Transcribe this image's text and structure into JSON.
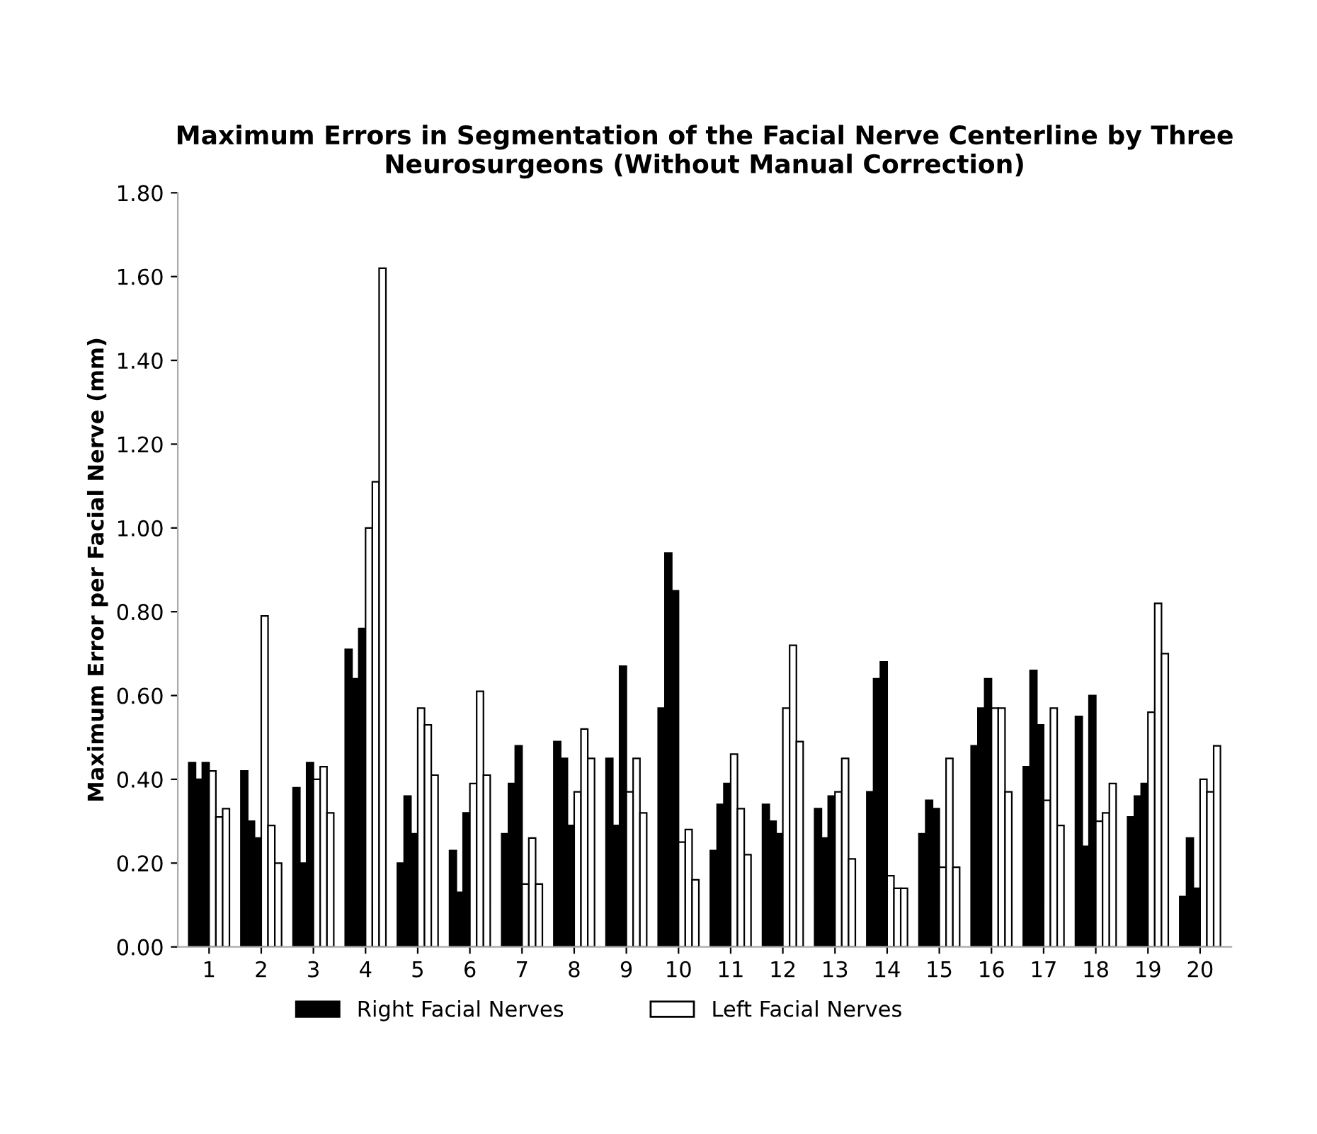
{
  "chart_data": {
    "type": "bar",
    "title": "Maximum Errors in Segmentation of the Facial Nerve Centerline by Three Neurosurgeons (Without Manual Correction)",
    "ylabel": "Maximum Error per Facial Nerve (mm)",
    "categories": [
      "1",
      "2",
      "3",
      "4",
      "5",
      "6",
      "7",
      "8",
      "9",
      "10",
      "11",
      "12",
      "13",
      "14",
      "15",
      "16",
      "17",
      "18",
      "19",
      "20"
    ],
    "series": [
      {
        "name": "Right Facial Nerves",
        "color": "#000000",
        "values": [
          0.44,
          0.42,
          0.38,
          0.71,
          0.2,
          0.23,
          0.27,
          0.49,
          0.45,
          0.57,
          0.23,
          0.34,
          0.33,
          0.37,
          0.27,
          0.48,
          0.43,
          0.55,
          0.31,
          0.12
        ]
      },
      {
        "color": "#000000",
        "values": [
          0.4,
          0.3,
          0.2,
          0.64,
          0.36,
          0.13,
          0.39,
          0.45,
          0.29,
          0.94,
          0.34,
          0.3,
          0.26,
          0.64,
          0.35,
          0.57,
          0.66,
          0.24,
          0.36,
          0.26
        ]
      },
      {
        "color": "#000000",
        "values": [
          0.44,
          0.26,
          0.44,
          0.76,
          0.27,
          0.32,
          0.48,
          0.29,
          0.67,
          0.85,
          0.39,
          0.27,
          0.36,
          0.68,
          0.33,
          0.64,
          0.53,
          0.6,
          0.39,
          0.14
        ]
      },
      {
        "name": "Left Facial Nerves",
        "color": "#ffffff",
        "values": [
          0.42,
          0.79,
          0.4,
          1.0,
          0.57,
          0.39,
          0.15,
          0.37,
          0.37,
          0.25,
          0.46,
          0.57,
          0.37,
          0.17,
          0.19,
          0.57,
          0.35,
          0.3,
          0.56,
          0.4
        ]
      },
      {
        "color": "#ffffff",
        "values": [
          0.31,
          0.29,
          0.43,
          1.11,
          0.53,
          0.61,
          0.26,
          0.52,
          0.45,
          0.28,
          0.33,
          0.72,
          0.45,
          0.14,
          0.45,
          0.57,
          0.57,
          0.32,
          0.82,
          0.37
        ]
      },
      {
        "color": "#ffffff",
        "values": [
          0.33,
          0.2,
          0.32,
          1.62,
          0.41,
          0.41,
          0.15,
          0.45,
          0.32,
          0.16,
          0.22,
          0.49,
          0.21,
          0.14,
          0.19,
          0.37,
          0.29,
          0.39,
          0.7,
          0.48
        ]
      }
    ],
    "ylim": [
      0,
      1.8
    ],
    "yticks": [
      {
        "value": 0,
        "label": "0.00"
      },
      {
        "value": 0.2,
        "label": "0.20"
      },
      {
        "value": 0.4,
        "label": "0.40"
      },
      {
        "value": 0.6,
        "label": "0.60"
      },
      {
        "value": 0.8,
        "label": "0.80"
      },
      {
        "value": 1.0,
        "label": "1.00"
      },
      {
        "value": 1.2,
        "label": "1.20"
      },
      {
        "value": 1.4,
        "label": "1.40"
      },
      {
        "value": 1.6,
        "label": "1.60"
      },
      {
        "value": 1.8,
        "label": "1.80"
      }
    ],
    "grid": false,
    "legend": "bottom"
  }
}
